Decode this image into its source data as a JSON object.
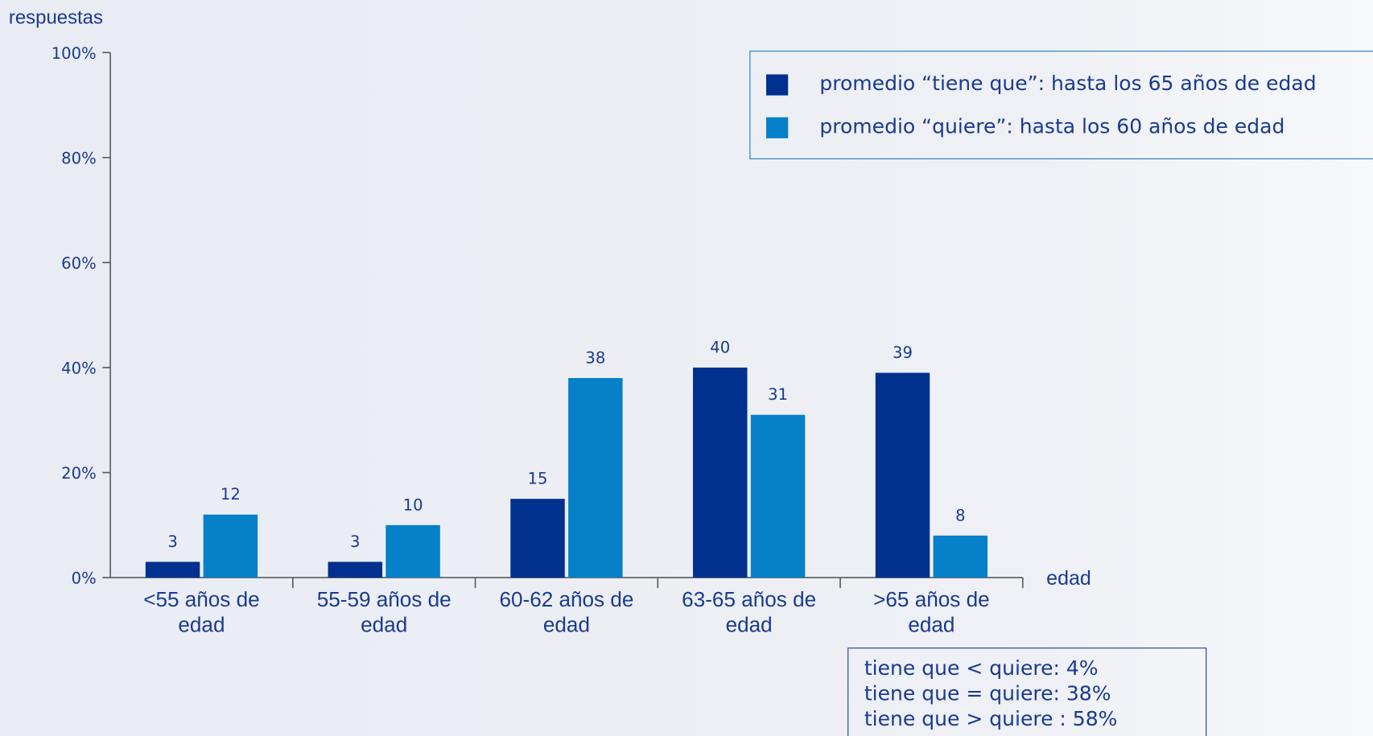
{
  "chart_data": {
    "type": "bar",
    "ylabel": "respuestas",
    "xlabel": "edad",
    "categories": [
      "<55 años de edad",
      "55-59 años de edad",
      "60-62 años de edad",
      "63-65 años de edad",
      ">65 años de edad"
    ],
    "series": [
      {
        "name": "promedio “tiene que”: hasta los 65 años de edad",
        "color": "#00318f",
        "values": [
          3,
          3,
          15,
          40,
          39
        ]
      },
      {
        "name": "promedio “quiere”: hasta los 60 años de edad",
        "color": "#0580c9",
        "values": [
          12,
          10,
          38,
          31,
          8
        ]
      }
    ],
    "ylim": [
      0,
      100
    ],
    "yticks": [
      {
        "value": 0,
        "label": "0%"
      },
      {
        "value": 20,
        "label": "20%"
      },
      {
        "value": 40,
        "label": "40%"
      },
      {
        "value": 60,
        "label": "60%"
      },
      {
        "value": 80,
        "label": "80%"
      },
      {
        "value": 100,
        "label": "100%"
      }
    ],
    "legend": "top-right",
    "annotations": [
      "tiene que < quiere: 4%",
      "tiene que = quiere: 38%",
      "tiene que > quiere : 58%"
    ]
  }
}
